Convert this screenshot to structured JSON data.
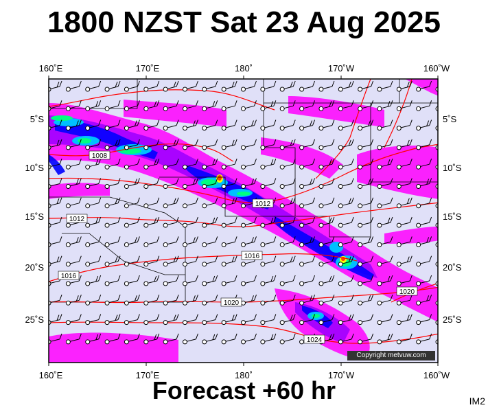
{
  "title": "1800 NZST Sat 23 Aug 2025",
  "footer": "Forecast +60 hr",
  "image_code": "IM2",
  "copyright": "Copyright metvuw.com",
  "lon_labels": [
    "160˚E",
    "170˚E",
    "180˚",
    "170˚W",
    "160˚W"
  ],
  "lat_labels": [
    "5˚S",
    "10˚S",
    "15˚S",
    "20˚S",
    "25˚S"
  ],
  "isobars": [
    {
      "label": "1008"
    },
    {
      "label": "1012"
    },
    {
      "label": "1012"
    },
    {
      "label": "1016"
    },
    {
      "label": "1016"
    },
    {
      "label": "1020"
    },
    {
      "label": "1020"
    },
    {
      "label": "1024"
    }
  ],
  "colors": {
    "ocean": "#e0e0f8",
    "isobar": "#ff0000",
    "rain_light": "#ff00ff",
    "rain_mid": "#a000ff",
    "rain_heavy": "#0000ff",
    "rain_very_heavy": "#00c0ff",
    "rain_extreme": "#00ff80",
    "rain_max": "#ffff00",
    "rain_peak": "#ff4000"
  }
}
